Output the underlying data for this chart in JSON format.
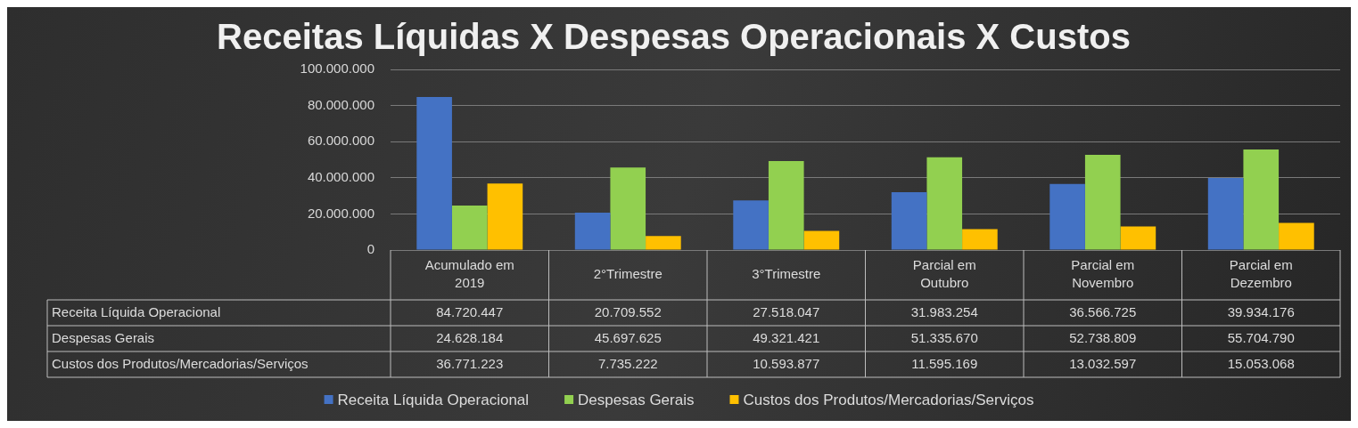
{
  "chart_data": {
    "type": "bar",
    "title": "Receitas Líquidas X Despesas Operacionais X Custos",
    "categories": [
      "Acumulado em 2019",
      "2°Trimestre",
      "3°Trimestre",
      "Parcial em Outubro",
      "Parcial em Novembro",
      "Parcial em Dezembro"
    ],
    "series": [
      {
        "name": "Receita Líquida Operacional",
        "color": "#4472c4",
        "values": [
          84720447,
          20709552,
          27518047,
          31983254,
          36566725,
          39934176
        ],
        "value_labels": [
          "84.720.447",
          "20.709.552",
          "27.518.047",
          "31.983.254",
          "36.566.725",
          "39.934.176"
        ]
      },
      {
        "name": "Despesas Gerais",
        "color": "#92d050",
        "values": [
          24628184,
          45697625,
          49321421,
          51335670,
          52738809,
          55704790
        ],
        "value_labels": [
          "24.628.184",
          "45.697.625",
          "49.321.421",
          "51.335.670",
          "52.738.809",
          "55.704.790"
        ]
      },
      {
        "name": "Custos dos Produtos/Mercadorias/Serviços",
        "color": "#ffc000",
        "values": [
          36771223,
          7735222,
          10593877,
          11595169,
          13032597,
          15053068
        ],
        "value_labels": [
          "36.771.223",
          "7.735.222",
          "10.593.877",
          "11.595.169",
          "13.032.597",
          "15.053.068"
        ]
      }
    ],
    "ylim": [
      0,
      100000000
    ],
    "yticks": [
      0,
      {
        "value": 20000000,
        "label": "20.000.000"
      },
      {
        "value": 40000000,
        "label": "40.000.000"
      },
      {
        "value": 60000000,
        "label": "60.000.000"
      },
      {
        "value": 80000000,
        "label": "80.000.000"
      },
      {
        "value": 100000000,
        "label": "100.000.000"
      }
    ],
    "grid": "y",
    "legend": "bottom"
  }
}
